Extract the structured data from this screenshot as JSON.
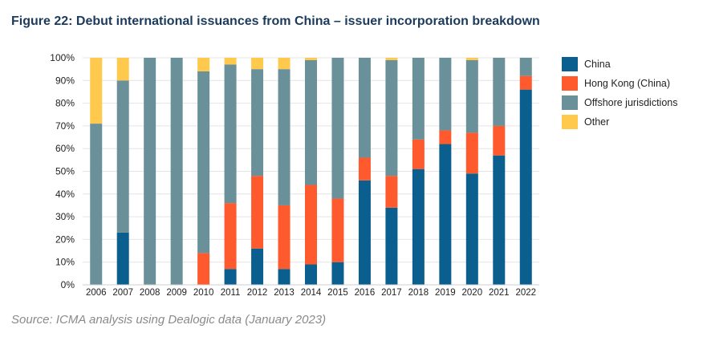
{
  "figure_title": "Figure 22: Debut international issuances from China – issuer incorporation breakdown",
  "source": "Source: ICMA analysis using Dealogic data (January 2023)",
  "chart_data": {
    "type": "bar",
    "stacked": true,
    "title": "",
    "xlabel": "",
    "ylabel": "",
    "ylim": [
      0,
      100
    ],
    "y_unit": "%",
    "yticks": [
      "0%",
      "10%",
      "20%",
      "30%",
      "40%",
      "50%",
      "60%",
      "70%",
      "80%",
      "90%",
      "100%"
    ],
    "grid": true,
    "legend_position": "right",
    "categories": [
      "2006",
      "2007",
      "2008",
      "2009",
      "2010",
      "2011",
      "2012",
      "2013",
      "2014",
      "2015",
      "2016",
      "2017",
      "2018",
      "2019",
      "2020",
      "2021",
      "2022"
    ],
    "series": [
      {
        "name": "China",
        "color": "#0a5f8f",
        "values": [
          0,
          23,
          0,
          0,
          0,
          7,
          16,
          7,
          9,
          10,
          46,
          34,
          51,
          62,
          49,
          57,
          86
        ]
      },
      {
        "name": "Hong Kong (China)",
        "color": "#ff5a2d",
        "values": [
          0,
          0,
          0,
          0,
          14,
          29,
          32,
          28,
          35,
          28,
          10,
          14,
          13,
          6,
          18,
          13,
          6
        ]
      },
      {
        "name": "Offshore jurisdictions",
        "color": "#6a9199",
        "values": [
          71,
          67,
          100,
          100,
          80,
          61,
          47,
          60,
          55,
          62,
          44,
          51,
          36,
          32,
          32,
          30,
          8
        ]
      },
      {
        "name": "Other",
        "color": "#ffc94d",
        "values": [
          29,
          10,
          0,
          0,
          6,
          3,
          5,
          5,
          1,
          0,
          0,
          1,
          0,
          0,
          1,
          0,
          0
        ]
      }
    ]
  }
}
